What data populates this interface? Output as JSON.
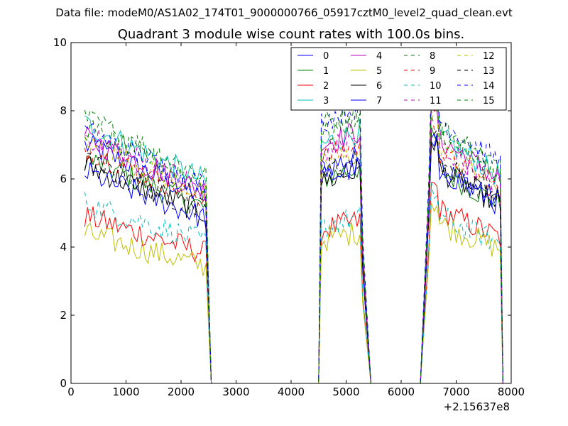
{
  "figure": {
    "suptitle": "Data file: modeM0/AS1A02_174T01_9000000766_05917cztM0_level2_quad_clean.evt"
  },
  "chart_data": {
    "type": "line",
    "title": "Quadrant 3 module wise count rates with 100.0s bins.",
    "xlabel": "",
    "ylabel": "",
    "xlim": [
      0,
      8000
    ],
    "ylim": [
      0,
      10
    ],
    "x_ticks": [
      "0",
      "1000",
      "2000",
      "3000",
      "4000",
      "5000",
      "6000",
      "7000",
      "8000"
    ],
    "y_ticks": [
      "0",
      "2",
      "4",
      "6",
      "8",
      "10"
    ],
    "x_offset_label": "+2.15637e8",
    "legend_position": "top-right",
    "legend_columns": 4,
    "segments": [
      {
        "start": 250,
        "end": 2450,
        "fall_end": 2550
      },
      {
        "start": 4550,
        "end": 5250,
        "rise_start": 4500,
        "fall_end": 5450
      },
      {
        "start": 6550,
        "end": 7800,
        "rise_start": 6350,
        "fall_end": 7850
      }
    ],
    "series": [
      {
        "name": "0",
        "color": "#0000ff",
        "dash": "solid",
        "levels": [
          7.0,
          6.3,
          6.5
        ]
      },
      {
        "name": "1",
        "color": "#008000",
        "dash": "solid",
        "levels": [
          6.6,
          6.0,
          6.4
        ]
      },
      {
        "name": "2",
        "color": "#ff0000",
        "dash": "solid",
        "levels": [
          4.9,
          4.5,
          5.2
        ]
      },
      {
        "name": "3",
        "color": "#00bfbf",
        "dash": "solid",
        "levels": [
          7.6,
          7.0,
          7.4
        ]
      },
      {
        "name": "4",
        "color": "#bf00bf",
        "dash": "solid",
        "levels": [
          7.2,
          7.0,
          7.3
        ]
      },
      {
        "name": "5",
        "color": "#bfbf00",
        "dash": "solid",
        "levels": [
          4.4,
          4.2,
          4.8
        ]
      },
      {
        "name": "6",
        "color": "#000000",
        "dash": "solid",
        "levels": [
          6.4,
          5.9,
          6.4
        ]
      },
      {
        "name": "7",
        "color": "#0000ff",
        "dash": "solid",
        "levels": [
          6.2,
          6.0,
          6.4
        ]
      },
      {
        "name": "8",
        "color": "#008000",
        "dash": "dashed",
        "levels": [
          7.8,
          7.6,
          7.7
        ]
      },
      {
        "name": "9",
        "color": "#ff0000",
        "dash": "dashed",
        "levels": [
          6.9,
          6.6,
          6.9
        ]
      },
      {
        "name": "10",
        "color": "#00bfbf",
        "dash": "dashed",
        "levels": [
          5.3,
          4.6,
          5.0
        ]
      },
      {
        "name": "11",
        "color": "#bf00bf",
        "dash": "dashed",
        "levels": [
          7.3,
          6.8,
          7.1
        ]
      },
      {
        "name": "12",
        "color": "#bfbf00",
        "dash": "dashed",
        "levels": [
          7.1,
          6.4,
          7.0
        ]
      },
      {
        "name": "13",
        "color": "#000000",
        "dash": "dashed",
        "levels": [
          6.5,
          6.2,
          6.6
        ]
      },
      {
        "name": "14",
        "color": "#0000ff",
        "dash": "dashed",
        "levels": [
          7.4,
          7.7,
          7.9
        ]
      },
      {
        "name": "15",
        "color": "#008000",
        "dash": "dashed",
        "levels": [
          7.5,
          7.3,
          7.5
        ]
      }
    ]
  }
}
